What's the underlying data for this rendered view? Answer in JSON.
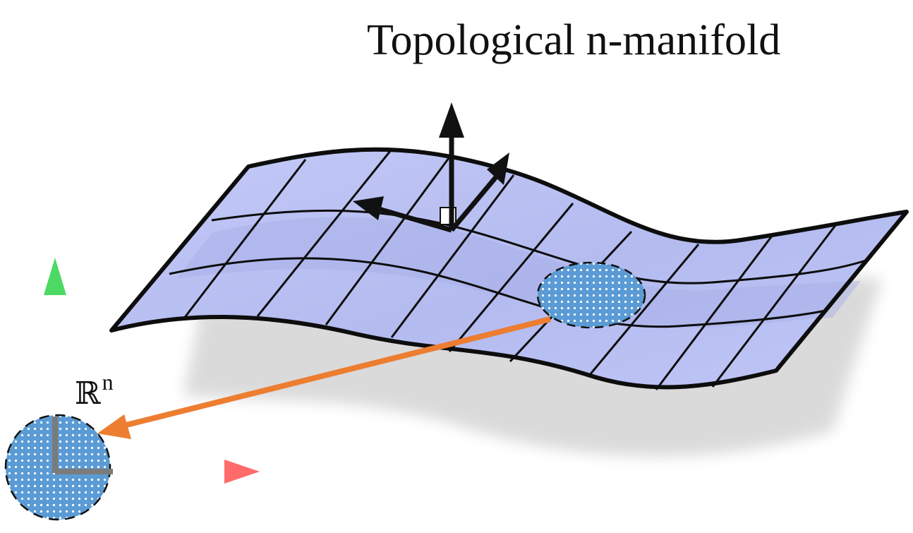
{
  "title": "Topological n-manifold",
  "space_label": {
    "symbol": "ℝ",
    "exponent": "n"
  },
  "colors": {
    "sheet_fill": "#bcc3f5",
    "sheet_shade": "#a9b1ea",
    "grid_line": "#0d0d0d",
    "patch_fill": "#5b9bd5",
    "map_arrow": "#ed7d31",
    "axis_y_tip": "#4cd964",
    "axis_x_tip": "#ff6b6b",
    "axis_gray": "#7b7b7b",
    "shadow": "#d9d9d9"
  },
  "icons": {
    "tangent_frame": "three-arrow-frame-icon",
    "coordinate_axes": "xy-axes-icon"
  }
}
